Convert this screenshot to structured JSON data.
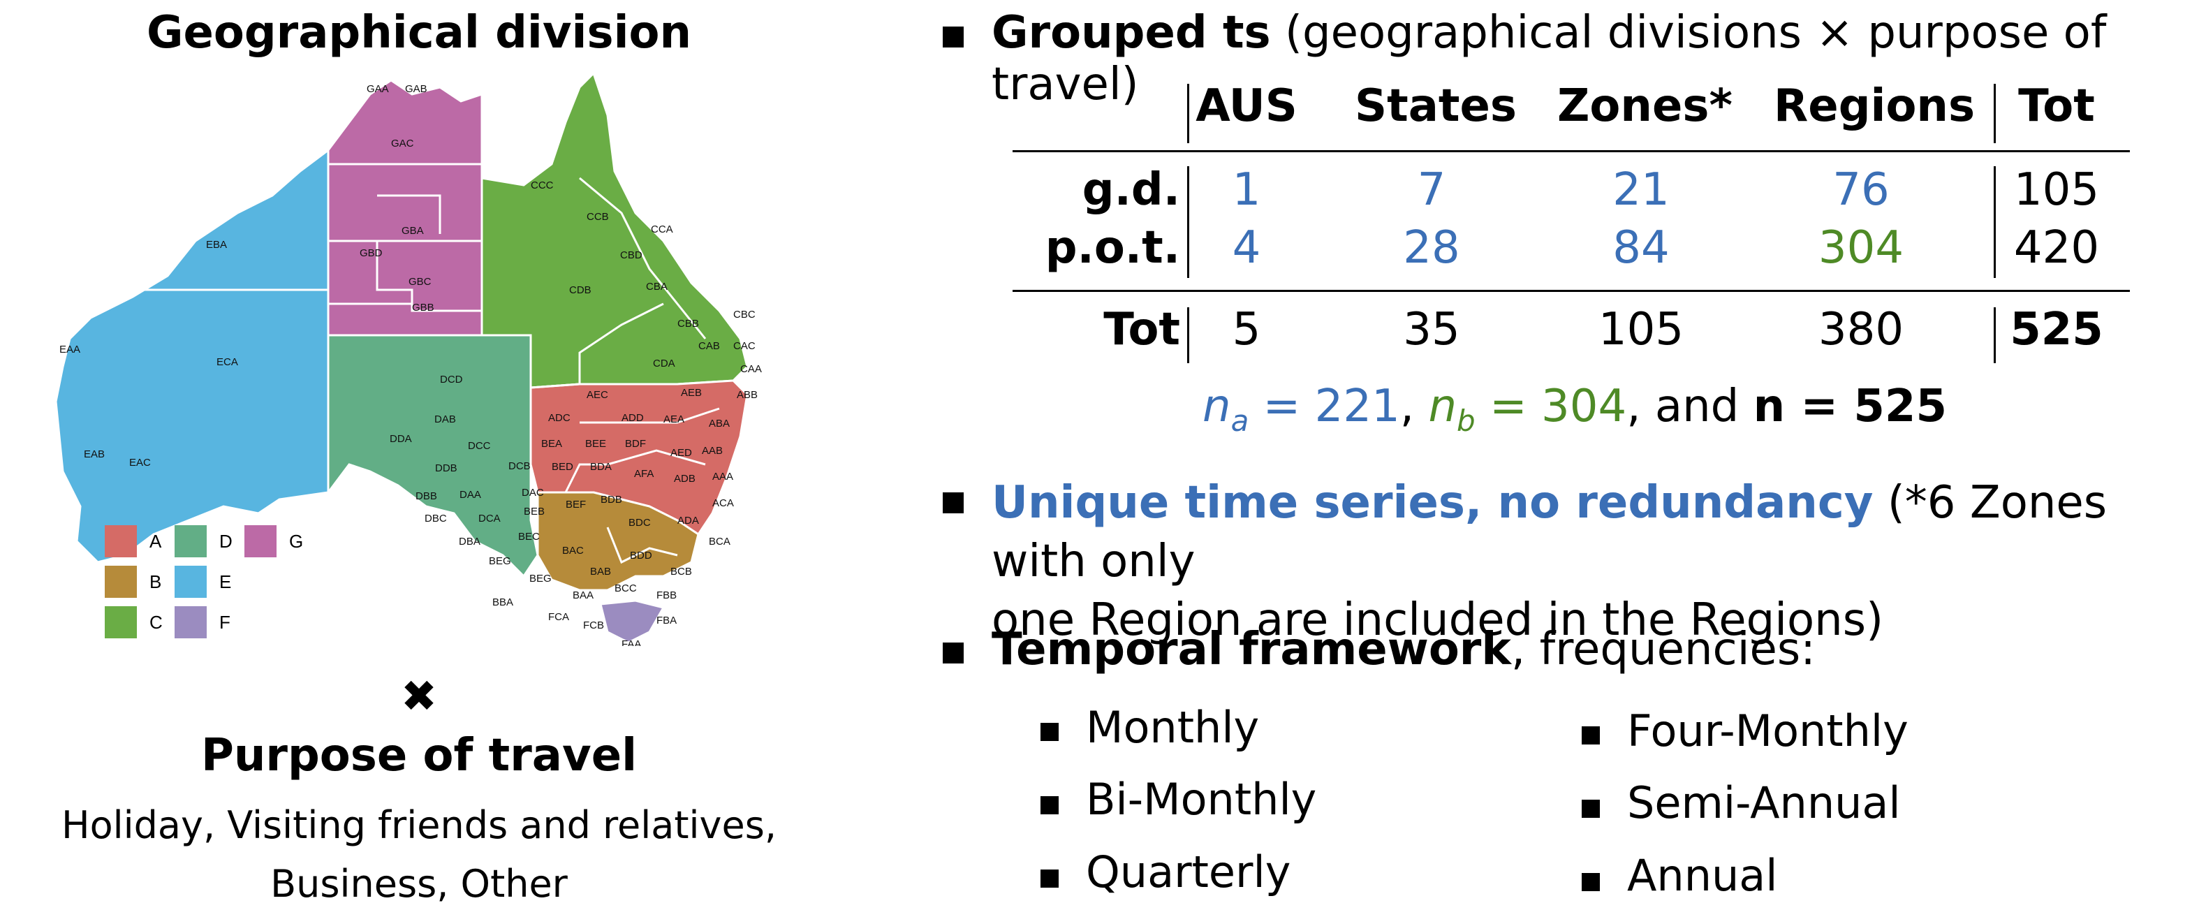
{
  "left": {
    "map_title": "Geographical division",
    "region_codes": [
      "GAA",
      "GAB",
      "GAC",
      "GBA",
      "GBD",
      "GBC",
      "GBB",
      "CCC",
      "CCB",
      "CCA",
      "CBD",
      "CBA",
      "CDB",
      "CBB",
      "CBC",
      "CAB",
      "CAC",
      "CAA",
      "CDA",
      "ABB",
      "AEB",
      "ABA",
      "AEC",
      "ADC",
      "ADD",
      "AEA",
      "AAB",
      "BEA",
      "BEE",
      "BDF",
      "AED",
      "BED",
      "BDA",
      "AFA",
      "ADB",
      "AAA",
      "EBA",
      "EAA",
      "ECA",
      "EAB",
      "EAC",
      "DCD",
      "DAB",
      "DDA",
      "DCC",
      "DDB",
      "DCB",
      "DBB",
      "DAA",
      "DAC",
      "BEB",
      "BEF",
      "BDB",
      "ACA",
      "DBC",
      "DCA",
      "BEC",
      "BDC",
      "ADA",
      "BCA",
      "DBA",
      "BAC",
      "BDD",
      "BEG",
      "BEG",
      "BAB",
      "BCB",
      "BBA",
      "BAA",
      "BCC",
      "FBB",
      "FCA",
      "FCB",
      "FBA",
      "FAA"
    ],
    "legend": [
      {
        "code": "A",
        "color": "#d56b66"
      },
      {
        "code": "B",
        "color": "#b68b3a"
      },
      {
        "code": "C",
        "color": "#6aad45"
      },
      {
        "code": "D",
        "color": "#62ae86"
      },
      {
        "code": "E",
        "color": "#58b5e0"
      },
      {
        "code": "F",
        "color": "#9b8cc0"
      },
      {
        "code": "G",
        "color": "#bc6aa6"
      }
    ],
    "times_symbol": "✖",
    "purpose_title": "Purpose of travel",
    "purpose_line1": "Holiday, Visiting friends and relatives,",
    "purpose_line2": "Business, Other"
  },
  "right": {
    "grouped_bold": "Grouped ts",
    "grouped_rest": "(geographical divisions × purpose of travel)",
    "table": {
      "headers": [
        "AUS",
        "States",
        "Zones*",
        "Regions",
        "Tot"
      ],
      "rows": [
        {
          "label": "g.d.",
          "values": [
            "1",
            "7",
            "21",
            "76",
            "105"
          ]
        },
        {
          "label": "p.o.t.",
          "values": [
            "4",
            "28",
            "84",
            "304",
            "420"
          ]
        }
      ],
      "total": {
        "label": "Tot",
        "values": [
          "5",
          "35",
          "105",
          "380",
          "525"
        ]
      }
    },
    "na_label": "n",
    "na_sub": "a",
    "na_eq": "= 221",
    "nb_label": "n",
    "nb_sub": "b",
    "nb_eq": "= 304",
    "n_and": ", and",
    "n_total": "n = 525",
    "unique_bold": "Unique time series, no redundancy",
    "unique_rest": "(*6 Zones with only",
    "unique_line2": "one Region are included in the Regions)",
    "temporal_bold": "Temporal framework",
    "temporal_rest": ", frequencies:",
    "frequencies": [
      "Monthly",
      "Bi-Monthly",
      "Quarterly",
      "Four-Monthly",
      "Semi-Annual",
      "Annual"
    ]
  },
  "colors": {
    "blue": "#3b6fb6",
    "green": "#4e8a26"
  }
}
